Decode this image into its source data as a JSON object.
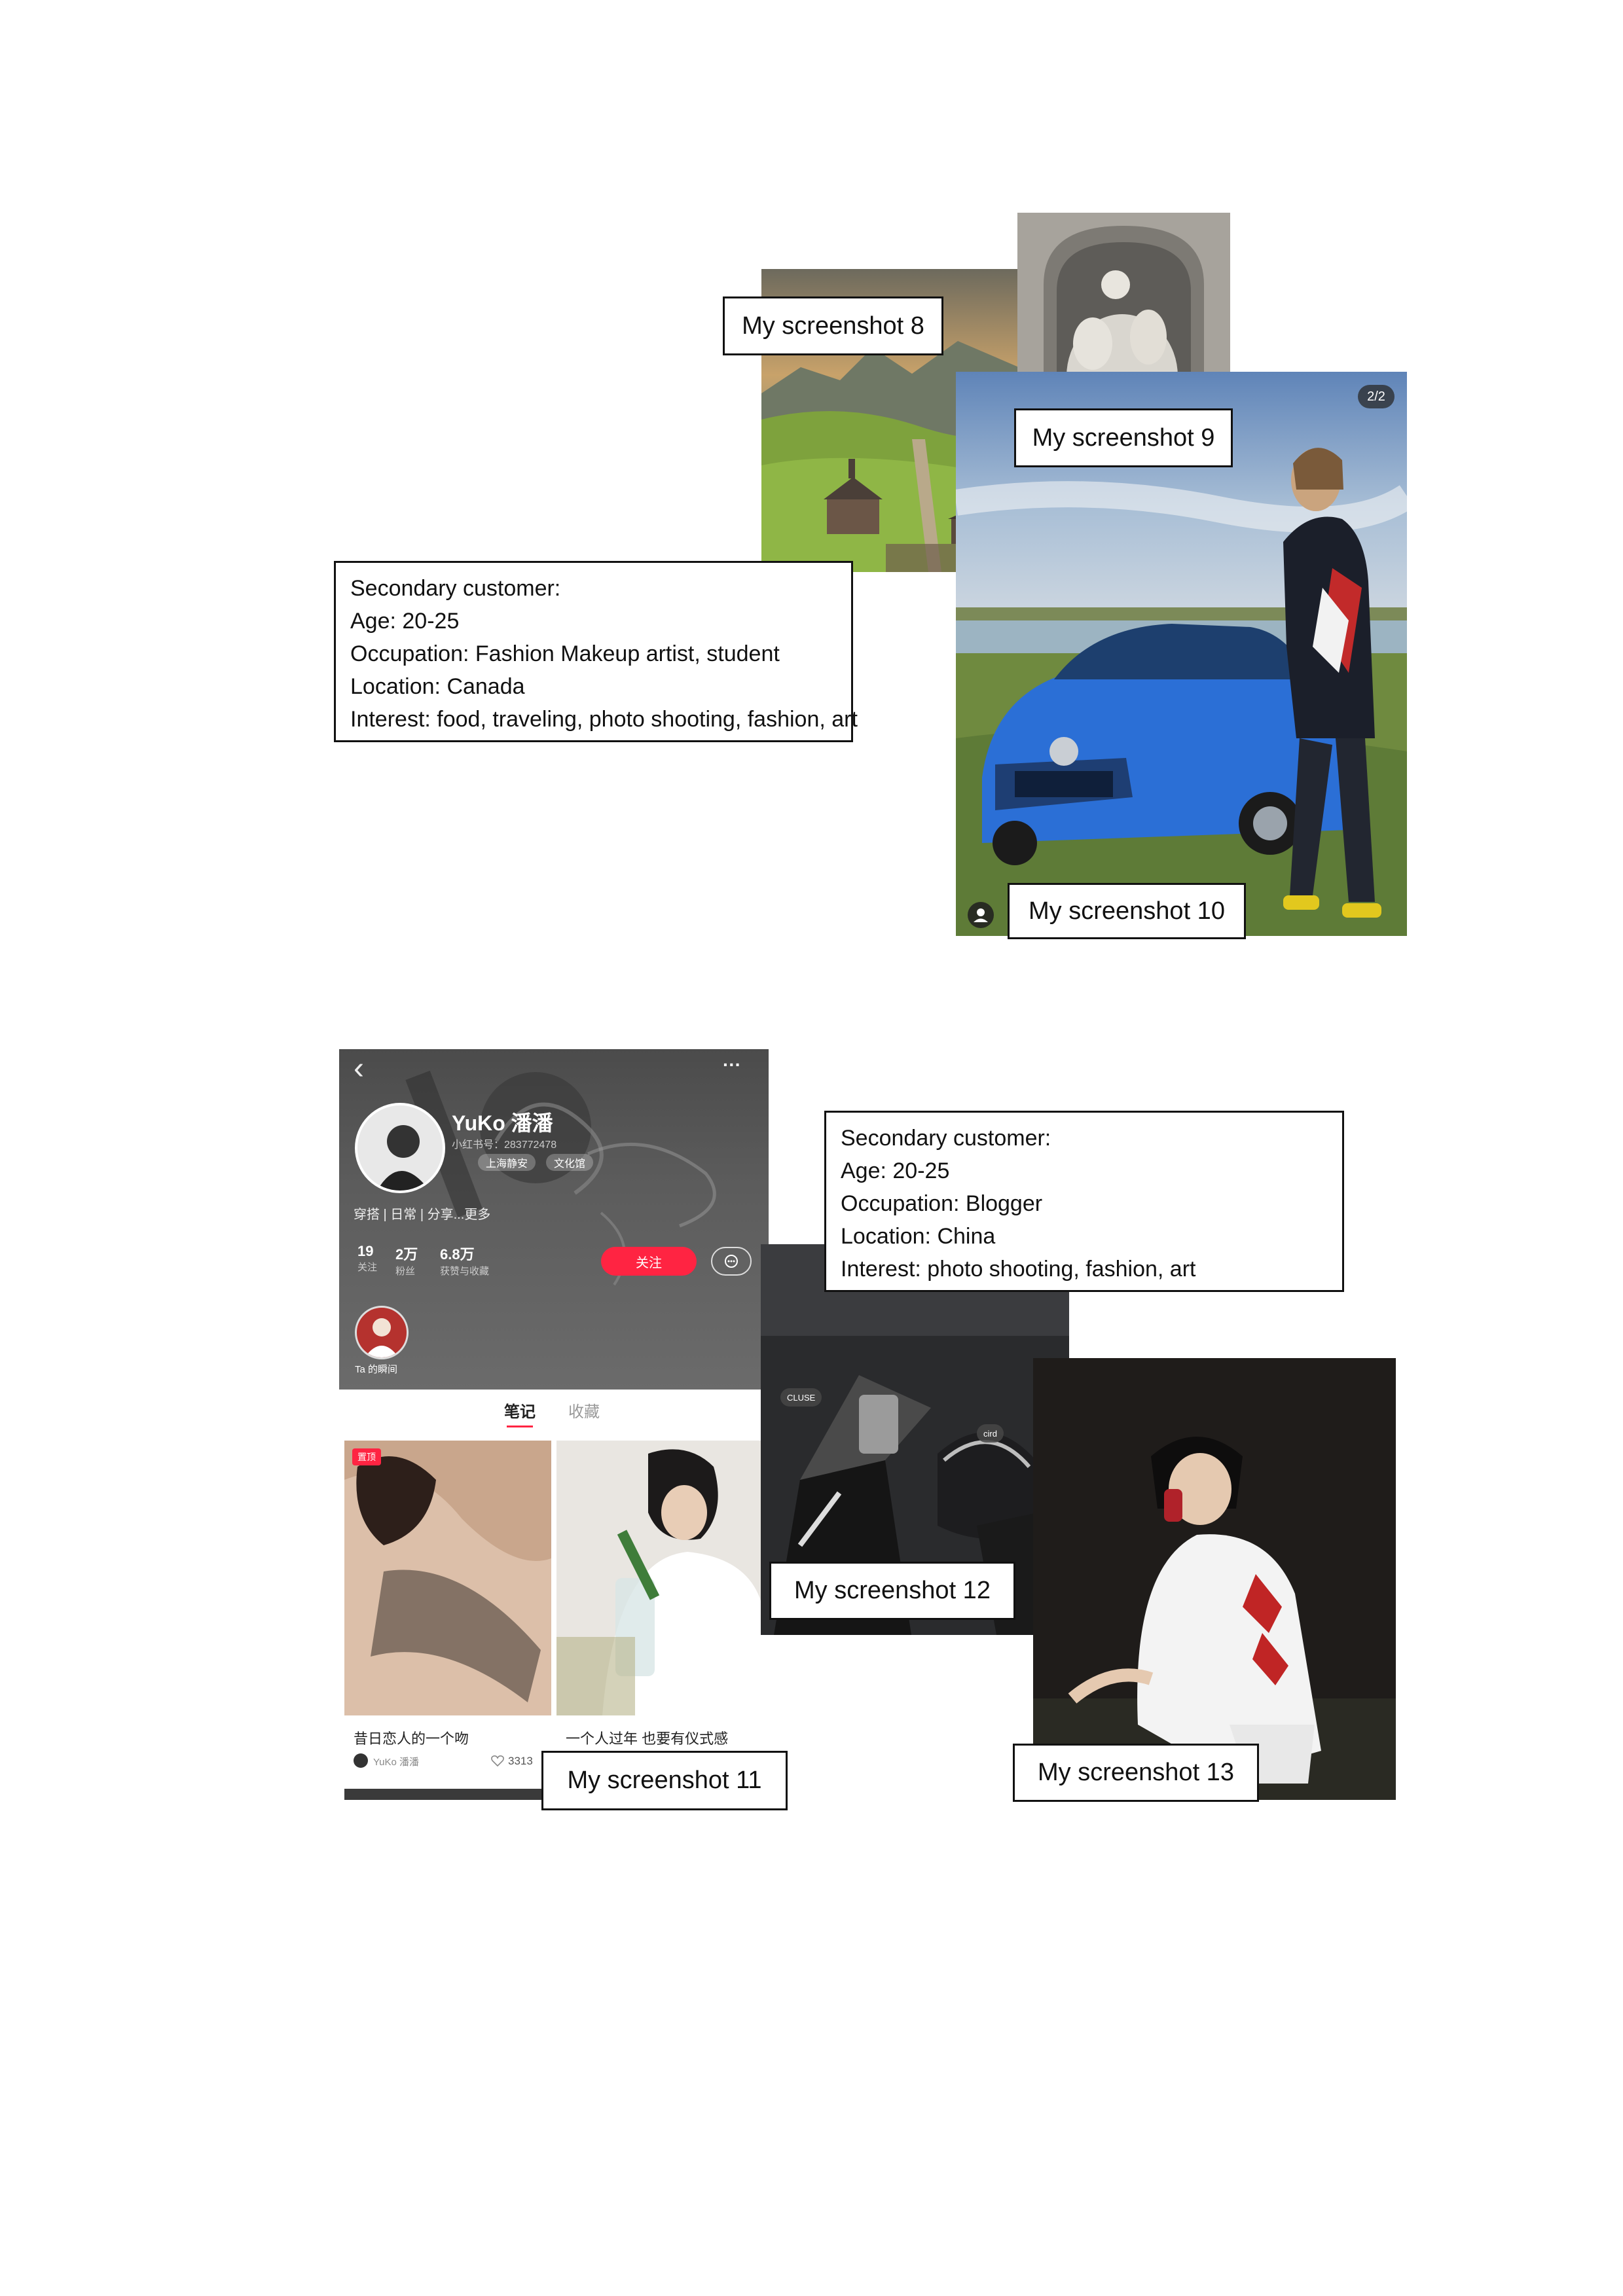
{
  "labels": {
    "s8": "My screenshot 8",
    "s9": "My screenshot 9",
    "s10": "My screenshot 10",
    "s11": "My screenshot 11",
    "s12": "My screenshot 12",
    "s13": "My screenshot 13"
  },
  "customer1": {
    "title": "Secondary customer:",
    "age": "Age: 20-25",
    "occupation": "Occupation: Fashion Makeup artist, student",
    "location": "Location: Canada",
    "interest": "Interest: food, traveling, photo shooting, fashion, art"
  },
  "customer2": {
    "title": "Secondary customer:",
    "age": "Age: 20-25",
    "occupation": "Occupation: Blogger",
    "location": "Location: China",
    "interest": "Interest: photo shooting, fashion, art"
  },
  "photo10": {
    "counter": "2/2"
  },
  "profile": {
    "back": "‹",
    "more": "···",
    "username": "YuKo 潘潘",
    "id_line": "小红书号：283772478",
    "tag1": "上海静安",
    "tag2": "文化馆",
    "bio": "穿搭 | 日常 | 分享...更多",
    "stats": [
      {
        "value": "19",
        "label": "关注"
      },
      {
        "value": "2万",
        "label": "粉丝"
      },
      {
        "value": "6.8万",
        "label": "获赞与收藏"
      }
    ],
    "follow_label": "关注",
    "moment_label": "Ta 的瞬间",
    "tabs": [
      "笔记",
      "收藏"
    ],
    "pinned_badge": "置顶",
    "card1_title": "昔日恋人的一个吻",
    "card1_author": "YuKo 潘潘",
    "card1_likes": "3313",
    "card2_title": "一个人过年 也要有仪式感"
  },
  "photo12": {
    "tag1": "CLUSE",
    "tag2": "cird"
  },
  "colors": {
    "accent": "#ff2442",
    "border": "#111111"
  }
}
